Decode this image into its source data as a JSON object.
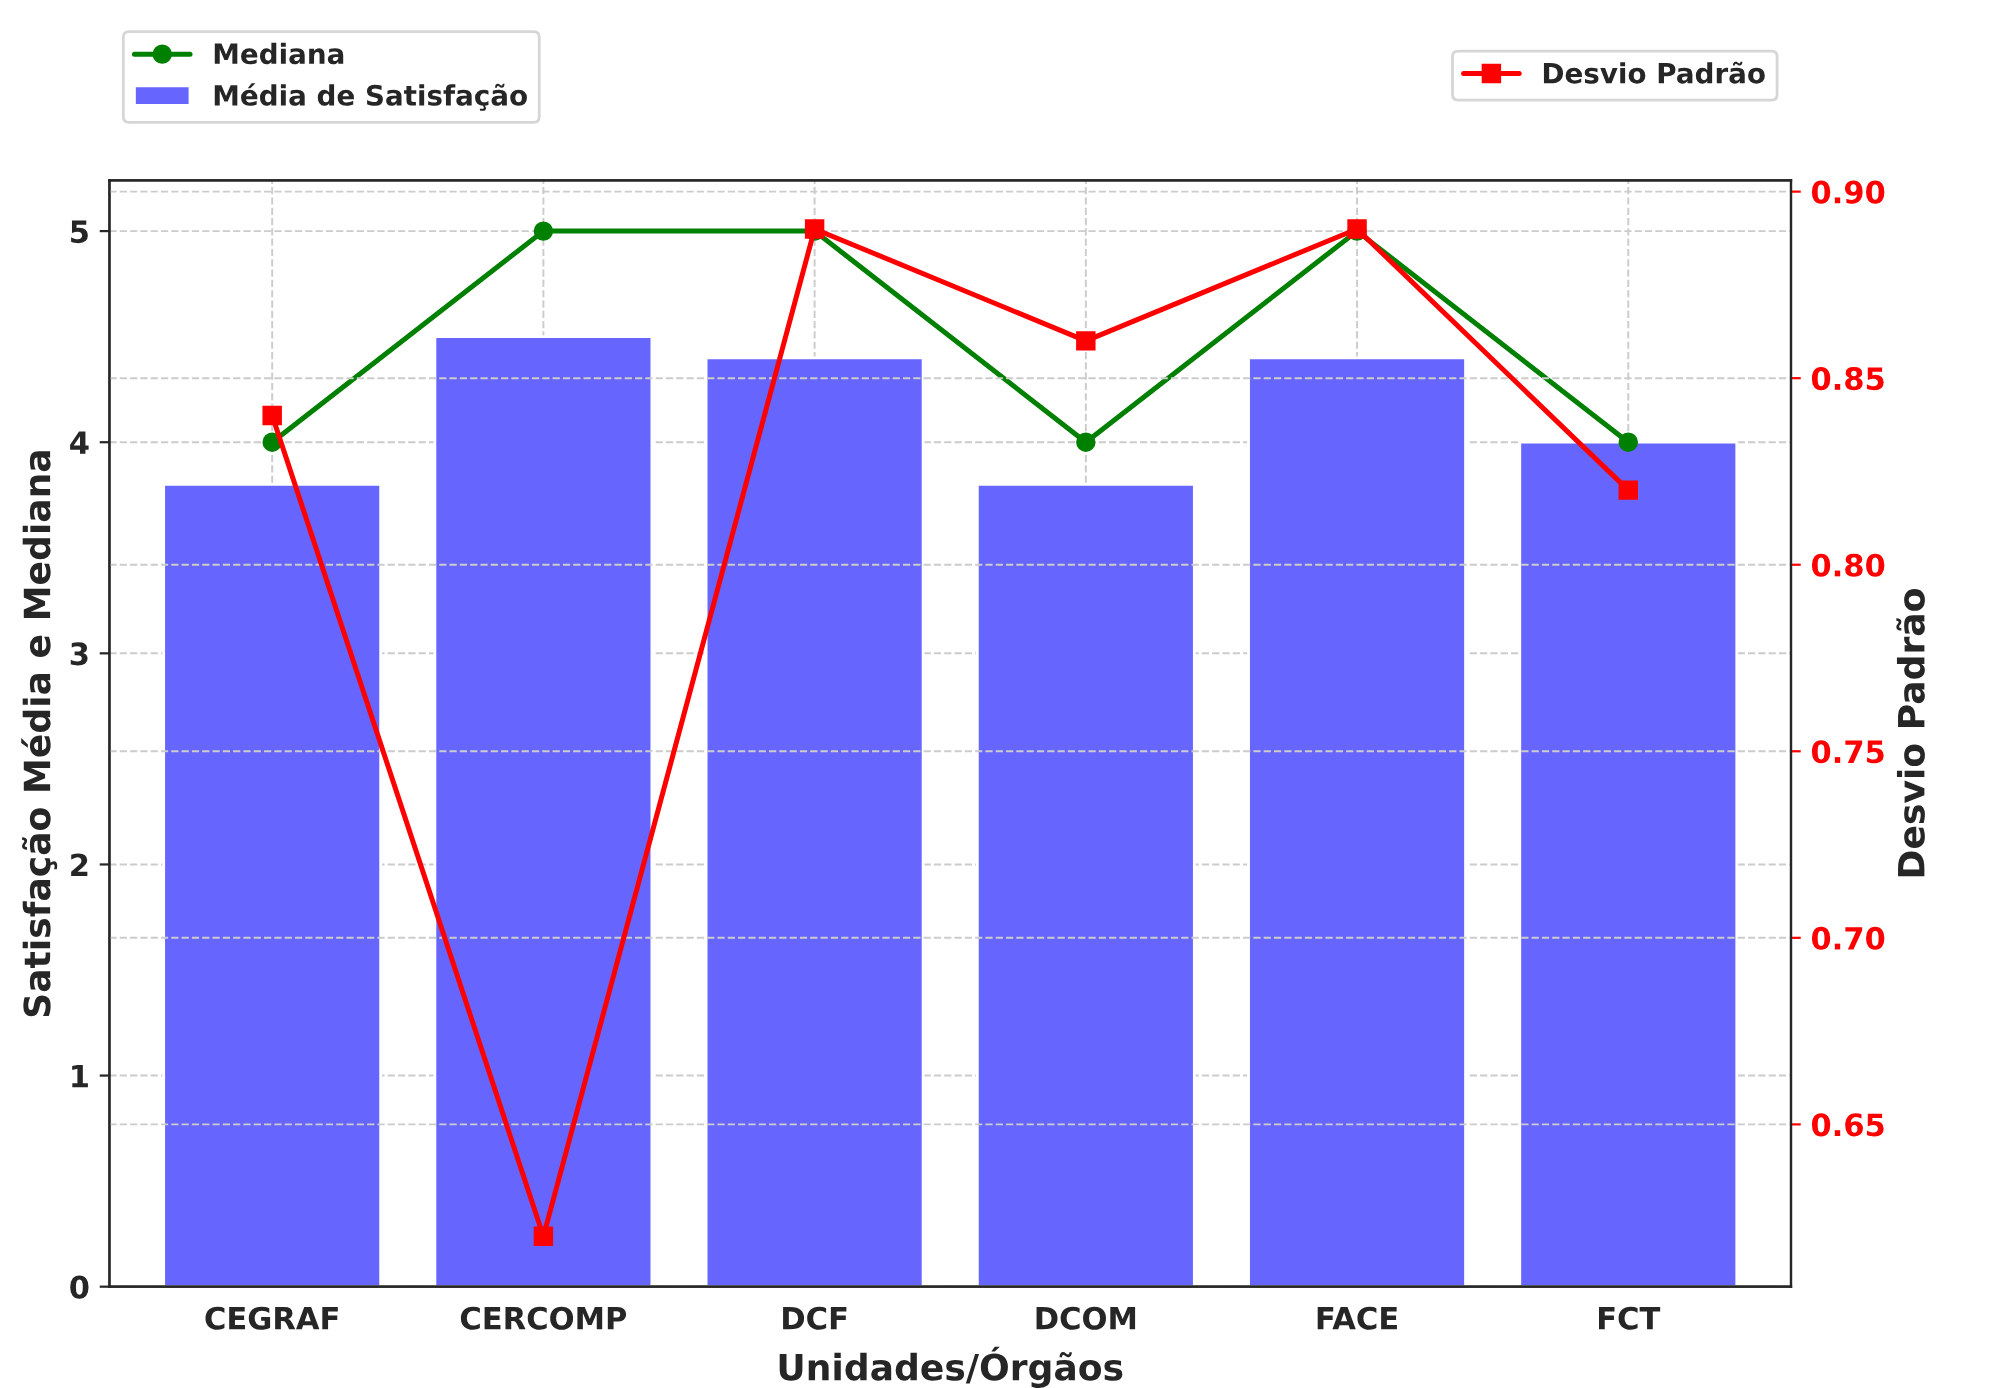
{
  "chart_data": {
    "type": "bar",
    "xlabel": "Unidades/Órgãos",
    "ylabel": "Satisfação Média e Mediana",
    "y2label": "Desvio Padrão",
    "categories": [
      "CEGRAF",
      "CERCOMP",
      "DCF",
      "DCOM",
      "FACE",
      "FCT"
    ],
    "series": [
      {
        "name": "Mediana",
        "type": "line",
        "color": "#008000",
        "marker": "circle",
        "values": [
          4,
          5,
          5,
          4,
          5,
          4
        ]
      },
      {
        "name": "Média de Satisfação",
        "color": "#6666ff",
        "values": [
          3.8,
          4.5,
          4.4,
          3.8,
          4.4,
          4.0
        ]
      },
      {
        "name": "Desvio Padrão",
        "type": "line",
        "color": "#ff0000",
        "marker": "square",
        "axis": "y2",
        "values": [
          0.84,
          0.62,
          0.89,
          0.86,
          0.89,
          0.82
        ]
      }
    ],
    "ylim": [
      0,
      5.24
    ],
    "yticks": [
      0,
      1,
      2,
      3,
      4,
      5
    ],
    "y2lim": [
      0.6065,
      0.903
    ],
    "y2ticks": [
      0.65,
      {
        "value": 0.7,
        "label": "0.70"
      },
      0.75,
      {
        "value": 0.8,
        "label": "0.80"
      },
      0.85,
      {
        "value": 0.9,
        "label": "0.90"
      }
    ],
    "grid": true,
    "legend": "top"
  }
}
